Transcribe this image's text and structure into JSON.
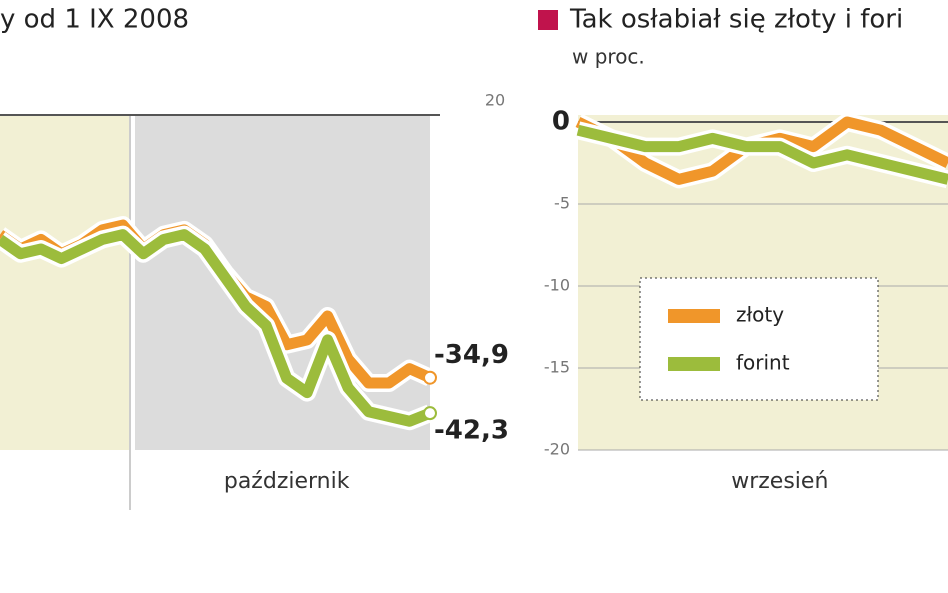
{
  "chart_data": [
    {
      "type": "line",
      "title": "y od 1 IX 2008",
      "categories": [
        null,
        null,
        null,
        null,
        null,
        null,
        null,
        null,
        null,
        null,
        null,
        null,
        null,
        null,
        "październik",
        null,
        null,
        null,
        null,
        null,
        null,
        null
      ],
      "series": [
        {
          "name": "złoty",
          "color": "#f0962a",
          "values": [
            -5,
            -8,
            -6,
            -9,
            -7,
            -4,
            -3,
            -8,
            -5,
            -4,
            -7,
            -13,
            -18,
            -20,
            -28,
            -27,
            -22,
            -31,
            -36,
            -36,
            -33,
            -34.9
          ],
          "value_labels": [
            null,
            null,
            null,
            null,
            null,
            null,
            null,
            null,
            null,
            null,
            null,
            null,
            null,
            null,
            null,
            null,
            null,
            null,
            null,
            null,
            null,
            "-34,9"
          ]
        },
        {
          "name": "forint",
          "color": "#9cbc3c",
          "values": [
            -6,
            -9,
            -8,
            -10,
            -8,
            -6,
            -5,
            -9,
            -6,
            -5,
            -8,
            -14,
            -20,
            -24,
            -35,
            -38,
            -27,
            -37,
            -42,
            -43,
            -44,
            -42.3
          ],
          "value_labels": [
            null,
            null,
            null,
            null,
            null,
            null,
            null,
            null,
            null,
            null,
            null,
            null,
            null,
            null,
            null,
            null,
            null,
            null,
            null,
            null,
            null,
            "-42,3"
          ]
        }
      ],
      "ylim": [
        -50,
        20
      ],
      "yticks": [
        20
      ],
      "grid": true,
      "legend": false
    },
    {
      "type": "line",
      "title": "Tak osłabiał się złoty i fori",
      "subtitle": "w proc.",
      "categories": [
        null,
        null,
        null,
        null,
        null,
        null,
        "wrzesień",
        null,
        null,
        null,
        null,
        null
      ],
      "series": [
        {
          "name": "złoty",
          "color": "#f0962a",
          "values": [
            0,
            -1,
            -2.5,
            -3.5,
            -3,
            -1.5,
            -1,
            -1.5,
            0,
            -0.5,
            -1.5,
            -2.5
          ]
        },
        {
          "name": "forint",
          "color": "#9cbc3c",
          "values": [
            -0.5,
            -1,
            -1.5,
            -1.5,
            -1,
            -1.5,
            -1.5,
            -2.5,
            -2,
            -2.5,
            -3,
            -3.5
          ]
        }
      ],
      "ylim": [
        -20,
        0
      ],
      "yticks": [
        0,
        -5,
        -10,
        -15,
        -20
      ],
      "grid": true,
      "legend": true
    }
  ]
}
